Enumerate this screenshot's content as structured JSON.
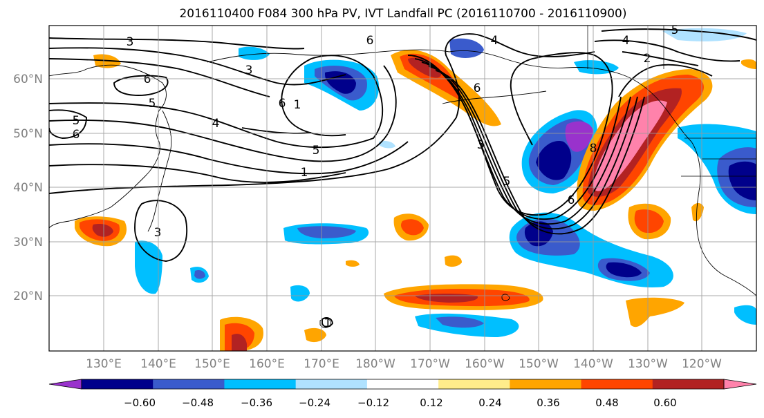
{
  "title": "2016110400 F084 300 hPa PV, IVT Landfall PC (2016110700 - 2016110900)",
  "lat_labels": [
    "60°N",
    "50°N",
    "40°N",
    "30°N",
    "20°N"
  ],
  "lon_labels": [
    "130°E",
    "140°E",
    "150°E",
    "160°E",
    "170°E",
    "180°W",
    "170°W",
    "160°W",
    "150°W",
    "140°W",
    "130°W",
    "120°W"
  ],
  "contour_labels": [
    "3",
    "6",
    "5",
    "6",
    "6",
    "5",
    "3",
    "4",
    "6",
    "1",
    "5",
    "1",
    "3",
    "6",
    "4",
    "3",
    "5",
    "6",
    "8",
    "4",
    "2",
    "5",
    "1"
  ],
  "colorbar": {
    "ticks": [
      "−0.60",
      "−0.48",
      "−0.36",
      "−0.24",
      "−0.12",
      "0.12",
      "0.24",
      "0.36",
      "0.48",
      "0.60"
    ],
    "colors": [
      "#9932CC",
      "#00008B",
      "#3A5BCC",
      "#00BFFF",
      "#B0E2FF",
      "#FFFFFF",
      "#FFEC8B",
      "#FFA500",
      "#FF4500",
      "#B22222",
      "#FF82AB"
    ]
  },
  "styles": {
    "tick_color": "#808080",
    "contour_color": "#000000"
  }
}
